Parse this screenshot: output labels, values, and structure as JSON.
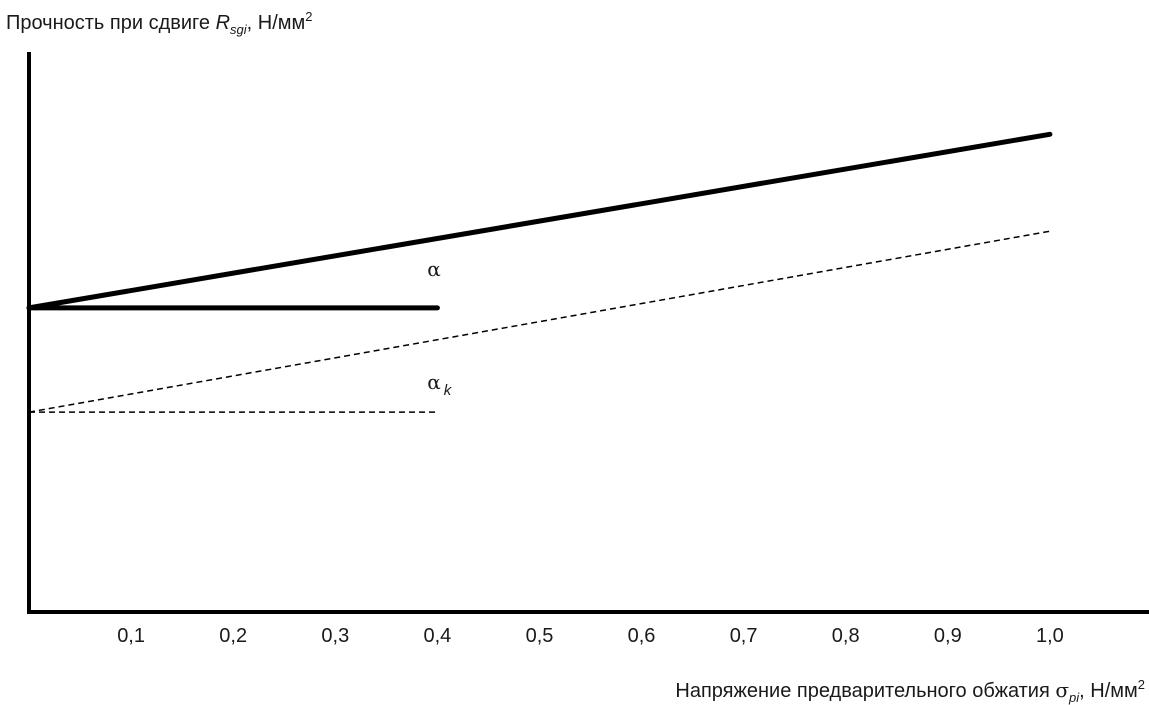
{
  "chart_data": {
    "type": "line",
    "title": "",
    "ylabel": {
      "text": "Прочность при сдвиге ",
      "symbol": "R",
      "subscript": "sgi",
      "unit": ", Н/мм",
      "unit_power": "2"
    },
    "xlabel": {
      "text": "Напряжение предварительного обжатия ",
      "symbol": "σ",
      "subscript": "pi",
      "unit": ", Н/мм",
      "unit_power": "2"
    },
    "x_ticks": [
      {
        "value": 0.1,
        "label": "0,1"
      },
      {
        "value": 0.2,
        "label": "0,2"
      },
      {
        "value": 0.3,
        "label": "0,3"
      },
      {
        "value": 0.4,
        "label": "0,4"
      },
      {
        "value": 0.5,
        "label": "0,5"
      },
      {
        "value": 0.6,
        "label": "0,6"
      },
      {
        "value": 0.7,
        "label": "0,7"
      },
      {
        "value": 0.8,
        "label": "0,8"
      },
      {
        "value": 0.9,
        "label": "0,9"
      },
      {
        "value": 1.0,
        "label": "1,0"
      }
    ],
    "xlim": [
      0,
      1.1
    ],
    "ylim": [
      0,
      1
    ],
    "y_ticks": [],
    "grid": false,
    "legend": "none",
    "series": [
      {
        "style": "solid-thick",
        "x": [
          0,
          1.0
        ],
        "y": [
          0.543,
          0.853
        ]
      },
      {
        "style": "solid-thick",
        "x": [
          0,
          0.4
        ],
        "y": [
          0.543,
          0.543
        ]
      },
      {
        "style": "dashed",
        "x": [
          0,
          1.0
        ],
        "y": [
          0.357,
          0.68
        ]
      },
      {
        "style": "dashed",
        "x": [
          0,
          0.4
        ],
        "y": [
          0.357,
          0.357
        ]
      }
    ],
    "annotations": [
      {
        "text": "α",
        "subscript": "",
        "x": 0.39,
        "y": 0.6
      },
      {
        "text": "α",
        "subscript": "k",
        "x": 0.39,
        "y": 0.398
      }
    ]
  }
}
